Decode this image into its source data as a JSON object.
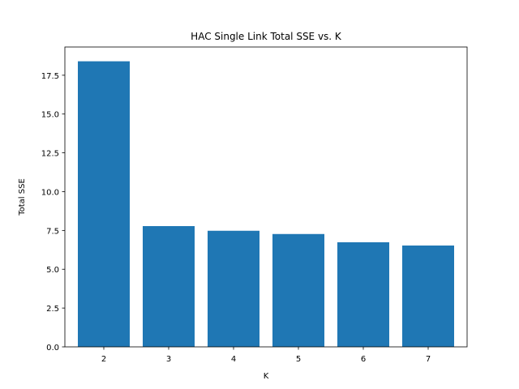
{
  "chart_data": {
    "type": "bar",
    "title": "HAC Single Link Total SSE vs. K",
    "xlabel": "K",
    "ylabel": "Total SSE",
    "categories": [
      "2",
      "3",
      "4",
      "5",
      "6",
      "7"
    ],
    "values": [
      18.4,
      7.78,
      7.48,
      7.27,
      6.74,
      6.53
    ],
    "ylim": [
      0,
      18.4
    ],
    "yticks": [
      "0.0",
      "2.5",
      "5.0",
      "7.5",
      "10.0",
      "12.5",
      "15.0",
      "17.5"
    ],
    "grid": false,
    "bar_color": "#1f77b4"
  }
}
